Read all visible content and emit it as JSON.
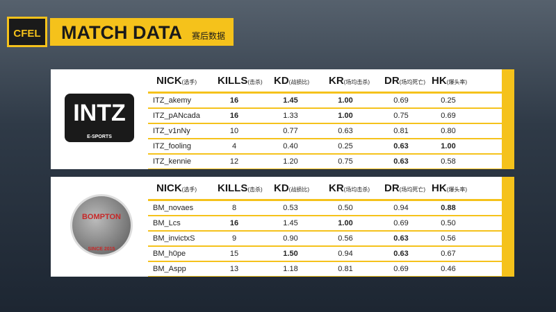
{
  "header": {
    "logo": "CFEL",
    "title": "MATCH DATA",
    "subtitle": "赛后数据"
  },
  "columns": [
    {
      "label": "NICK",
      "note": "(选手)"
    },
    {
      "label": "KILLS",
      "note": "(击杀)"
    },
    {
      "label": "KD",
      "note": "(战损比)"
    },
    {
      "label": "KR",
      "note": "(场均击杀)"
    },
    {
      "label": "DR",
      "note": "(场均死亡)"
    },
    {
      "label": "HK",
      "note": "(爆头率)"
    }
  ],
  "teams": [
    {
      "logo": "INTZ",
      "logo_sub": "E-SPORTS",
      "rows": [
        [
          "ITZ_akemy",
          "16",
          "1.45",
          "1.00",
          "0.69",
          "0.25"
        ],
        [
          "ITZ_pANcada",
          "16",
          "1.33",
          "1.00",
          "0.75",
          "0.69"
        ],
        [
          "ITZ_v1nNy",
          "10",
          "0.77",
          "0.63",
          "0.81",
          "0.80"
        ],
        [
          "ITZ_fooling",
          "4",
          "0.40",
          "0.25",
          "0.63",
          "1.00"
        ],
        [
          "ITZ_kennie",
          "12",
          "1.20",
          "0.75",
          "0.63",
          "0.58"
        ]
      ],
      "bold": [
        [
          1,
          2,
          3
        ],
        [
          1,
          3
        ],
        [],
        [
          4,
          5
        ],
        [
          4
        ]
      ]
    },
    {
      "logo": "BOMPTON",
      "logo_sub": "SINCE 2015",
      "rows": [
        [
          "BM_novaes",
          "8",
          "0.53",
          "0.50",
          "0.94",
          "0.88"
        ],
        [
          "BM_Lcs",
          "16",
          "1.45",
          "1.00",
          "0.69",
          "0.50"
        ],
        [
          "BM_invictxS",
          "9",
          "0.90",
          "0.56",
          "0.63",
          "0.56"
        ],
        [
          "BM_h0pe",
          "15",
          "1.50",
          "0.94",
          "0.63",
          "0.67"
        ],
        [
          "BM_Aspp",
          "13",
          "1.18",
          "0.81",
          "0.69",
          "0.46"
        ]
      ],
      "bold": [
        [
          5
        ],
        [
          1,
          3
        ],
        [
          4
        ],
        [
          2,
          4
        ],
        []
      ]
    }
  ]
}
